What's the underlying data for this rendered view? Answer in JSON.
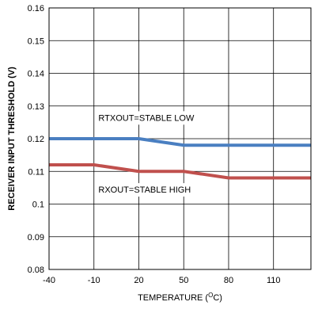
{
  "chart_data": {
    "type": "line",
    "title": "",
    "xlabel": "TEMPERATURE (",
    "xlabel_sup": "O",
    "xlabel_tail": "C)",
    "ylabel": "RECEIVER INPUT THRESHOLD (V)",
    "xlim": [
      -40,
      135
    ],
    "ylim": [
      0.08,
      0.16
    ],
    "grid": true,
    "legend": "none",
    "x_ticks": [
      -40,
      -10,
      20,
      50,
      80,
      110
    ],
    "x_tick_labels": [
      "-40",
      "-10",
      "20",
      "50",
      "80",
      "110"
    ],
    "y_ticks": [
      0.08,
      0.09,
      0.1,
      0.11,
      0.12,
      0.13,
      0.14,
      0.15,
      0.16
    ],
    "y_tick_labels": [
      "0.08",
      "0.09",
      "0.1",
      "0.11",
      "0.12",
      "0.13",
      "0.14",
      "0.15",
      "0.16"
    ],
    "series": [
      {
        "color": "#4a7fc1",
        "x": [
          -40,
          -10,
          20,
          50,
          80,
          110,
          135
        ],
        "y": [
          0.12,
          0.12,
          0.12,
          0.118,
          0.118,
          0.118,
          0.118
        ]
      },
      {
        "color": "#c0504d",
        "x": [
          -40,
          -10,
          20,
          50,
          80,
          110,
          135
        ],
        "y": [
          0.112,
          0.112,
          0.11,
          0.11,
          0.108,
          0.108,
          0.108
        ]
      }
    ],
    "annotations": [
      {
        "text": "RTXOUT=STABLE LOW",
        "x": -7,
        "y": 0.1255
      },
      {
        "text": "RXOUT=STABLE HIGH",
        "x": -7,
        "y": 0.1035
      }
    ]
  }
}
